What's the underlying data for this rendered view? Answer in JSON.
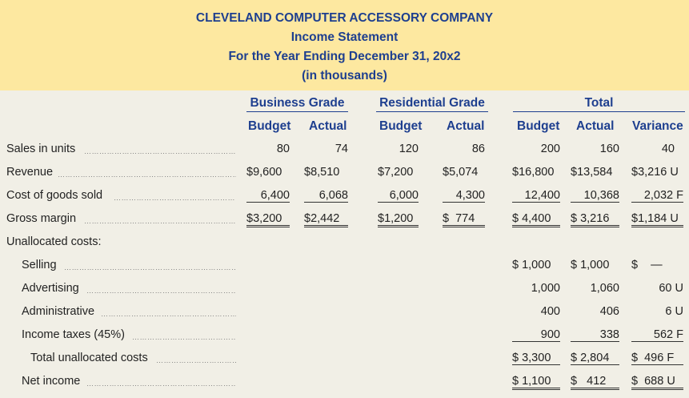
{
  "title": {
    "company": "CLEVELAND COMPUTER ACCESSORY COMPANY",
    "statement": "Income Statement",
    "period": "For the Year Ending December 31, 20x2",
    "units": "(in thousands)"
  },
  "groups": {
    "business": "Business Grade",
    "residential": "Residential Grade",
    "total": "Total"
  },
  "columns": {
    "budget": "Budget",
    "actual": "Actual",
    "variance": "Variance"
  },
  "rows": {
    "sales_units": {
      "label": "Sales in units",
      "bb": "80",
      "ba": "74",
      "rb": "120",
      "ra": "86",
      "tb": "200",
      "ta": "160",
      "tv": "40"
    },
    "revenue": {
      "label": "Revenue",
      "bb": "$9,600",
      "ba": "$8,510",
      "rb": "$7,200",
      "ra": "$5,074",
      "tb": "$16,800",
      "ta": "$13,584",
      "tv": "$3,216 U"
    },
    "cogs": {
      "label": "Cost of goods sold",
      "bb": "6,400",
      "ba": "6,068",
      "rb": "6,000",
      "ra": "4,300",
      "tb": "12,400",
      "ta": "10,368",
      "tv": "2,032 F"
    },
    "gross_margin": {
      "label": "Gross margin",
      "bb": "$3,200",
      "ba": "$2,442",
      "rb": "$1,200",
      "ra": "$  774",
      "tb": "$ 4,400",
      "ta": "$ 3,216",
      "tv": "$1,184 U"
    },
    "unallocated": {
      "label": "Unallocated costs:"
    },
    "selling": {
      "label": "Selling",
      "tb": "$ 1,000",
      "ta": "$ 1,000",
      "tv": "$    —"
    },
    "advertising": {
      "label": "Advertising",
      "tb": "1,000",
      "ta": "1,060",
      "tv": "60 U"
    },
    "administrative": {
      "label": "Administrative",
      "tb": "400",
      "ta": "406",
      "tv": "6 U"
    },
    "income_taxes": {
      "label": "Income taxes (45%)",
      "tb": "900",
      "ta": "338",
      "tv": "562 F"
    },
    "total_unallocated": {
      "label": "Total unallocated costs",
      "tb": "$ 3,300",
      "ta": "$ 2,804",
      "tv": "$  496 F"
    },
    "net_income": {
      "label": "Net income",
      "tb": "$ 1,100",
      "ta": "$   412",
      "tv": "$  688 U"
    }
  },
  "colors": {
    "header_bg": "#fde8a0",
    "body_bg": "#f1efe6",
    "heading_text": "#1e3f8f"
  }
}
